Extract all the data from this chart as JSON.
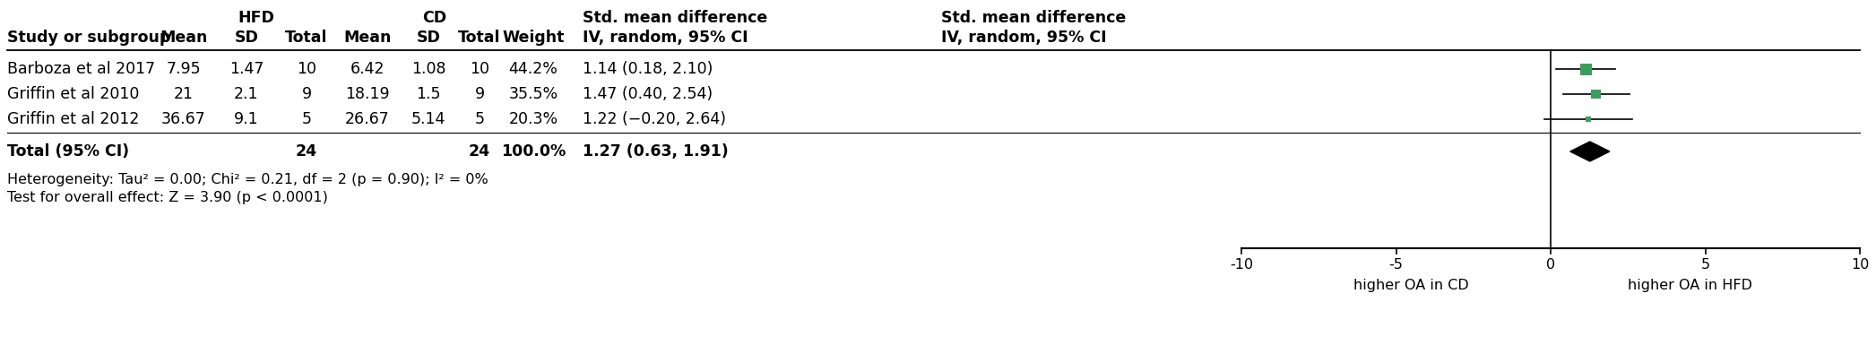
{
  "studies": [
    "Barboza et al 2017",
    "Griffin et al 2010",
    "Griffin et al 2012"
  ],
  "hfd_mean": [
    "7.95",
    "21",
    "36.67"
  ],
  "hfd_sd": [
    "1.47",
    "2.1",
    "9.1"
  ],
  "hfd_total": [
    "10",
    "9",
    "5"
  ],
  "cd_mean": [
    "6.42",
    "18.19",
    "26.67"
  ],
  "cd_sd": [
    "1.08",
    "1.5",
    "5.14"
  ],
  "cd_total": [
    "10",
    "9",
    "5"
  ],
  "weight": [
    "44.2%",
    "35.5%",
    "20.3%"
  ],
  "smd": [
    1.14,
    1.47,
    1.22
  ],
  "ci_low": [
    0.18,
    0.4,
    -0.2
  ],
  "ci_high": [
    2.1,
    2.54,
    2.64
  ],
  "smd_text": [
    "1.14 (0.18, 2.10)",
    "1.47 (0.40, 2.54)",
    "1.22 (−0.20, 2.64)"
  ],
  "total_hfd": "24",
  "total_cd": "24",
  "total_weight": "100.0%",
  "total_smd": 1.27,
  "total_ci_low": 0.63,
  "total_ci_high": 1.91,
  "total_smd_text": "1.27 (0.63, 1.91)",
  "heterogeneity_text": "Heterogeneity: Tau² = 0.00; Chi² = 0.21, df = 2 (p = 0.90); I² = 0%",
  "overall_effect_text": "Test for overall effect: Z = 3.90 (p < 0.0001)",
  "col_header1": "HFD",
  "col_header2": "CD",
  "col_header3": "Std. mean difference",
  "col_header4": "IV, random, 95% CI",
  "col_header5": "Std. mean difference",
  "col_header6": "IV, random, 95% CI",
  "row_header": "Study or subgroup",
  "mean_header": "Mean",
  "sd_header": "SD",
  "total_header": "Total",
  "weight_header": "Weight",
  "x_min": -10,
  "x_max": 10,
  "x_ticks": [
    -10,
    -5,
    0,
    5,
    10
  ],
  "xlabel_left": "higher OA in CD",
  "xlabel_right": "higher OA in HFD",
  "square_color": "#3a9e5f",
  "diamond_color": "#000000",
  "line_color": "#000000",
  "text_color": "#000000",
  "bg_color": "#ffffff",
  "weight_vals": [
    44.2,
    35.5,
    20.3
  ]
}
